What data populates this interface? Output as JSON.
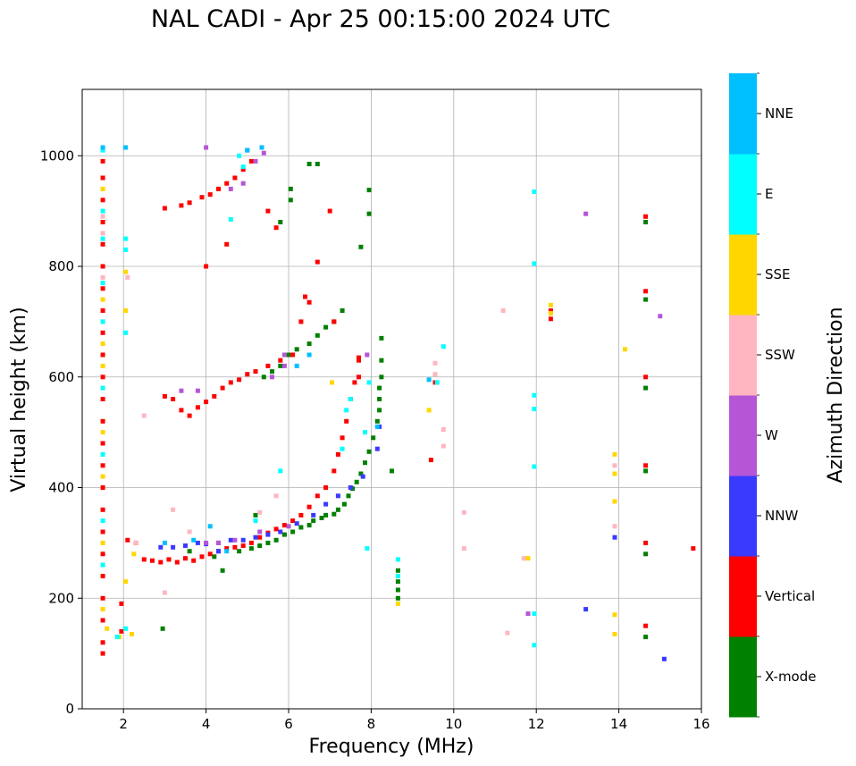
{
  "chart_data": {
    "type": "scatter",
    "title": "NAL CADI - Apr 25 00:15:00 2024 UTC",
    "xlabel": "Frequency (MHz)",
    "ylabel": "Virtual height (km)",
    "xlim": [
      1,
      16
    ],
    "ylim": [
      0,
      1120
    ],
    "xticks": [
      2,
      4,
      6,
      8,
      10,
      12,
      14,
      16
    ],
    "yticks": [
      0,
      200,
      400,
      600,
      800,
      1000
    ],
    "grid": true,
    "colorbar": {
      "label": "Azimuth Direction",
      "categories": [
        {
          "name": "X-mode",
          "color": "#008000"
        },
        {
          "name": "Vertical",
          "color": "#ff0000"
        },
        {
          "name": "NNW",
          "color": "#3a3aff"
        },
        {
          "name": "W",
          "color": "#b556d6"
        },
        {
          "name": "SSW",
          "color": "#ffb6c1"
        },
        {
          "name": "SSE",
          "color": "#ffd700"
        },
        {
          "name": "E",
          "color": "#00ffff"
        },
        {
          "name": "NNE",
          "color": "#00bfff"
        }
      ]
    },
    "series": [
      {
        "name": "X-mode",
        "points": [
          [
            3.6,
            285
          ],
          [
            4.2,
            275
          ],
          [
            4.4,
            250
          ],
          [
            4.8,
            285
          ],
          [
            5.1,
            290
          ],
          [
            5.3,
            295
          ],
          [
            5.5,
            300
          ],
          [
            5.7,
            305
          ],
          [
            5.9,
            315
          ],
          [
            6.1,
            320
          ],
          [
            6.3,
            328
          ],
          [
            6.5,
            332
          ],
          [
            6.6,
            340
          ],
          [
            6.8,
            345
          ],
          [
            6.9,
            350
          ],
          [
            7.1,
            352
          ],
          [
            7.2,
            360
          ],
          [
            7.35,
            370
          ],
          [
            7.45,
            385
          ],
          [
            7.55,
            398
          ],
          [
            7.65,
            410
          ],
          [
            7.75,
            425
          ],
          [
            7.85,
            445
          ],
          [
            7.95,
            465
          ],
          [
            8.05,
            490
          ],
          [
            8.15,
            520
          ],
          [
            8.2,
            560
          ],
          [
            8.25,
            600
          ],
          [
            8.25,
            630
          ],
          [
            8.25,
            670
          ],
          [
            8.65,
            250
          ],
          [
            8.65,
            230
          ],
          [
            8.65,
            215
          ],
          [
            8.65,
            200
          ],
          [
            8.5,
            430
          ],
          [
            8.2,
            540
          ],
          [
            8.2,
            580
          ],
          [
            5.4,
            600
          ],
          [
            5.6,
            610
          ],
          [
            5.8,
            620
          ],
          [
            6.0,
            640
          ],
          [
            6.2,
            650
          ],
          [
            6.5,
            660
          ],
          [
            6.7,
            675
          ],
          [
            6.9,
            690
          ],
          [
            7.1,
            700
          ],
          [
            7.3,
            720
          ],
          [
            5.8,
            880
          ],
          [
            6.05,
            920
          ],
          [
            6.05,
            940
          ],
          [
            6.5,
            985
          ],
          [
            6.7,
            985
          ],
          [
            7.75,
            835
          ],
          [
            7.95,
            938
          ],
          [
            7.95,
            895
          ],
          [
            2.95,
            145
          ],
          [
            14.65,
            880
          ],
          [
            14.65,
            740
          ],
          [
            14.65,
            580
          ],
          [
            14.65,
            430
          ],
          [
            14.65,
            280
          ],
          [
            14.65,
            130
          ],
          [
            5.2,
            350
          ]
        ]
      },
      {
        "name": "Vertical",
        "points": [
          [
            1.5,
            990
          ],
          [
            1.5,
            960
          ],
          [
            1.5,
            920
          ],
          [
            1.5,
            880
          ],
          [
            1.5,
            840
          ],
          [
            1.5,
            800
          ],
          [
            1.5,
            760
          ],
          [
            1.5,
            720
          ],
          [
            1.5,
            680
          ],
          [
            1.5,
            640
          ],
          [
            1.5,
            600
          ],
          [
            1.5,
            560
          ],
          [
            1.5,
            520
          ],
          [
            1.5,
            480
          ],
          [
            1.5,
            440
          ],
          [
            1.5,
            400
          ],
          [
            1.5,
            360
          ],
          [
            1.5,
            320
          ],
          [
            1.5,
            280
          ],
          [
            1.5,
            240
          ],
          [
            1.5,
            200
          ],
          [
            1.5,
            160
          ],
          [
            1.5,
            120
          ],
          [
            1.5,
            100
          ],
          [
            1.95,
            190
          ],
          [
            1.95,
            140
          ],
          [
            2.1,
            305
          ],
          [
            2.3,
            300
          ],
          [
            2.5,
            270
          ],
          [
            2.7,
            268
          ],
          [
            2.9,
            265
          ],
          [
            3.1,
            270
          ],
          [
            3.3,
            265
          ],
          [
            3.5,
            272
          ],
          [
            3.7,
            268
          ],
          [
            3.9,
            275
          ],
          [
            4.1,
            280
          ],
          [
            4.3,
            285
          ],
          [
            4.5,
            290
          ],
          [
            4.7,
            292
          ],
          [
            4.9,
            295
          ],
          [
            5.1,
            300
          ],
          [
            5.3,
            310
          ],
          [
            5.5,
            318
          ],
          [
            5.7,
            325
          ],
          [
            5.9,
            332
          ],
          [
            6.1,
            340
          ],
          [
            6.3,
            350
          ],
          [
            6.5,
            365
          ],
          [
            6.7,
            385
          ],
          [
            6.9,
            400
          ],
          [
            7.1,
            430
          ],
          [
            7.2,
            460
          ],
          [
            7.3,
            490
          ],
          [
            7.4,
            520
          ],
          [
            7.5,
            560
          ],
          [
            7.6,
            590
          ],
          [
            7.7,
            630
          ],
          [
            3.0,
            565
          ],
          [
            3.2,
            560
          ],
          [
            3.4,
            540
          ],
          [
            3.6,
            530
          ],
          [
            3.8,
            545
          ],
          [
            4.0,
            555
          ],
          [
            4.2,
            565
          ],
          [
            4.4,
            580
          ],
          [
            4.6,
            590
          ],
          [
            4.8,
            595
          ],
          [
            5.0,
            605
          ],
          [
            5.2,
            610
          ],
          [
            5.5,
            620
          ],
          [
            5.8,
            630
          ],
          [
            6.1,
            640
          ],
          [
            6.3,
            700
          ],
          [
            6.5,
            735
          ],
          [
            6.4,
            745
          ],
          [
            7.1,
            700
          ],
          [
            3.0,
            905
          ],
          [
            3.4,
            910
          ],
          [
            3.6,
            915
          ],
          [
            3.9,
            925
          ],
          [
            4.1,
            930
          ],
          [
            4.3,
            940
          ],
          [
            4.5,
            950
          ],
          [
            4.7,
            960
          ],
          [
            4.9,
            975
          ],
          [
            5.1,
            990
          ],
          [
            4.0,
            800
          ],
          [
            4.5,
            840
          ],
          [
            5.5,
            900
          ],
          [
            5.7,
            870
          ],
          [
            6.7,
            808
          ],
          [
            7.0,
            900
          ],
          [
            7.7,
            635
          ],
          [
            7.7,
            600
          ],
          [
            9.55,
            590
          ],
          [
            9.45,
            450
          ],
          [
            12.35,
            720
          ],
          [
            12.35,
            705
          ],
          [
            14.65,
            890
          ],
          [
            14.65,
            755
          ],
          [
            14.65,
            600
          ],
          [
            14.65,
            440
          ],
          [
            14.65,
            300
          ],
          [
            14.65,
            150
          ],
          [
            15.8,
            290
          ]
        ]
      },
      {
        "name": "NNW",
        "points": [
          [
            2.9,
            292
          ],
          [
            3.2,
            292
          ],
          [
            3.5,
            295
          ],
          [
            3.8,
            300
          ],
          [
            4.0,
            298
          ],
          [
            4.3,
            300
          ],
          [
            4.6,
            305
          ],
          [
            4.9,
            305
          ],
          [
            5.2,
            310
          ],
          [
            5.5,
            315
          ],
          [
            5.8,
            320
          ],
          [
            6.2,
            335
          ],
          [
            6.6,
            350
          ],
          [
            6.9,
            370
          ],
          [
            7.2,
            385
          ],
          [
            7.5,
            400
          ],
          [
            7.8,
            420
          ],
          [
            8.15,
            470
          ],
          [
            8.2,
            510
          ],
          [
            4.3,
            285
          ],
          [
            13.2,
            180
          ],
          [
            15.1,
            90
          ],
          [
            13.9,
            310
          ]
        ]
      },
      {
        "name": "W",
        "points": [
          [
            4.0,
            300
          ],
          [
            4.3,
            300
          ],
          [
            4.7,
            305
          ],
          [
            5.3,
            320
          ],
          [
            5.6,
            600
          ],
          [
            5.9,
            620
          ],
          [
            3.8,
            575
          ],
          [
            3.4,
            575
          ],
          [
            4.0,
            1015
          ],
          [
            5.0,
            1010
          ],
          [
            5.2,
            990
          ],
          [
            5.4,
            1005
          ],
          [
            4.6,
            940
          ],
          [
            4.9,
            950
          ],
          [
            5.9,
            640
          ],
          [
            7.9,
            640
          ],
          [
            11.8,
            172
          ],
          [
            13.2,
            895
          ],
          [
            15.0,
            710
          ],
          [
            6.0,
            330
          ]
        ]
      },
      {
        "name": "SSW",
        "points": [
          [
            1.5,
            890
          ],
          [
            1.5,
            860
          ],
          [
            1.5,
            780
          ],
          [
            1.5,
            700
          ],
          [
            2.1,
            780
          ],
          [
            2.3,
            300
          ],
          [
            2.5,
            530
          ],
          [
            3.0,
            210
          ],
          [
            3.2,
            360
          ],
          [
            3.6,
            320
          ],
          [
            9.55,
            625
          ],
          [
            9.55,
            605
          ],
          [
            9.75,
            505
          ],
          [
            9.75,
            475
          ],
          [
            10.25,
            355
          ],
          [
            10.25,
            290
          ],
          [
            11.2,
            720
          ],
          [
            11.3,
            137
          ],
          [
            11.7,
            272
          ],
          [
            13.9,
            440
          ],
          [
            13.9,
            330
          ],
          [
            5.3,
            355
          ],
          [
            5.7,
            385
          ]
        ]
      },
      {
        "name": "SSE",
        "points": [
          [
            1.5,
            940
          ],
          [
            1.5,
            740
          ],
          [
            1.5,
            660
          ],
          [
            1.5,
            620
          ],
          [
            1.5,
            500
          ],
          [
            1.5,
            420
          ],
          [
            1.5,
            300
          ],
          [
            1.5,
            180
          ],
          [
            1.6,
            145
          ],
          [
            1.9,
            130
          ],
          [
            2.05,
            790
          ],
          [
            2.05,
            720
          ],
          [
            2.05,
            230
          ],
          [
            2.2,
            135
          ],
          [
            2.25,
            280
          ],
          [
            9.4,
            540
          ],
          [
            12.35,
            730
          ],
          [
            12.35,
            715
          ],
          [
            14.15,
            650
          ],
          [
            13.9,
            460
          ],
          [
            13.9,
            425
          ],
          [
            13.9,
            375
          ],
          [
            13.9,
            170
          ],
          [
            13.9,
            135
          ],
          [
            8.65,
            190
          ],
          [
            11.8,
            272
          ],
          [
            7.05,
            590
          ]
        ]
      },
      {
        "name": "E",
        "points": [
          [
            1.5,
            1010
          ],
          [
            1.5,
            900
          ],
          [
            1.5,
            850
          ],
          [
            1.5,
            770
          ],
          [
            1.5,
            700
          ],
          [
            1.5,
            580
          ],
          [
            1.5,
            460
          ],
          [
            1.5,
            340
          ],
          [
            1.5,
            260
          ],
          [
            2.05,
            850
          ],
          [
            2.05,
            830
          ],
          [
            2.05,
            680
          ],
          [
            1.85,
            130
          ],
          [
            2.05,
            145
          ],
          [
            7.3,
            470
          ],
          [
            7.4,
            540
          ],
          [
            7.5,
            560
          ],
          [
            7.85,
            500
          ],
          [
            7.9,
            290
          ],
          [
            7.95,
            590
          ],
          [
            8.65,
            270
          ],
          [
            8.65,
            240
          ],
          [
            9.6,
            590
          ],
          [
            9.75,
            655
          ],
          [
            11.95,
            935
          ],
          [
            11.95,
            805
          ],
          [
            11.95,
            567
          ],
          [
            11.95,
            542
          ],
          [
            11.95,
            438
          ],
          [
            11.95,
            172
          ],
          [
            11.95,
            115
          ],
          [
            4.8,
            1000
          ],
          [
            4.9,
            980
          ],
          [
            4.6,
            885
          ],
          [
            5.8,
            430
          ],
          [
            5.2,
            340
          ]
        ]
      },
      {
        "name": "NNE",
        "points": [
          [
            2.05,
            1015
          ],
          [
            1.5,
            1015
          ],
          [
            4.1,
            330
          ],
          [
            3.7,
            305
          ],
          [
            3.0,
            300
          ],
          [
            8.15,
            510
          ],
          [
            9.4,
            595
          ],
          [
            6.5,
            640
          ],
          [
            6.2,
            620
          ],
          [
            4.5,
            285
          ],
          [
            5.0,
            1010
          ],
          [
            5.35,
            1015
          ]
        ]
      }
    ]
  }
}
